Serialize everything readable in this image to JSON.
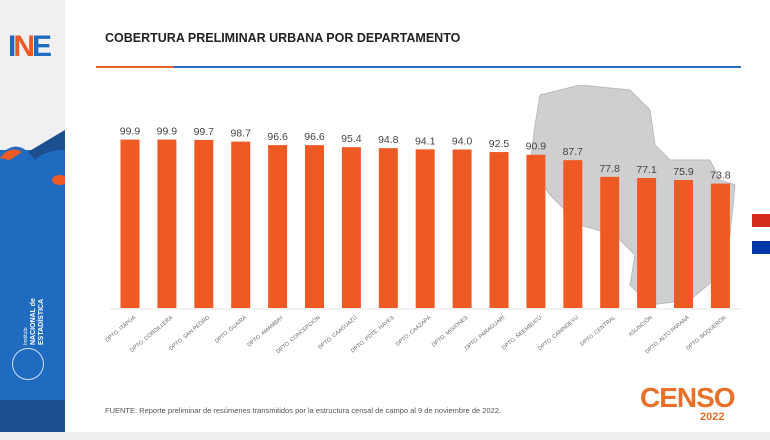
{
  "header": {
    "logo": "INE",
    "title": "COBERTURA PRELIMINAR URBANA POR DEPARTAMENTO"
  },
  "sidebar": {
    "institution_lines": [
      "Instituto",
      "NACIONAL de",
      "ESTADÍSTICA"
    ]
  },
  "footer": {
    "source": "FUENTE: Reporte preliminar de resúmenes transmitidos por la estructura censal de campo al 9 de noviembre de 2022.",
    "censo_logo": "CENSO",
    "censo_year": "2022"
  },
  "colors": {
    "bar": "#ef5a24",
    "brand_blue": "#1f6bbf",
    "brand_orange": "#e8702a"
  },
  "chart_data": {
    "type": "bar",
    "title": "COBERTURA PRELIMINAR URBANA POR DEPARTAMENTO",
    "xlabel": "",
    "ylabel": "",
    "ylim": [
      0,
      100
    ],
    "grid": false,
    "legend": "none",
    "categories": [
      "DPTO. ITAPÚA",
      "DPTO. CORDILLERA",
      "DPTO. SAN PEDRO",
      "DPTO. GUAIRÁ",
      "DPTO. AMAMBAY",
      "DPTO. CONCEPCIÓN",
      "DPTO. CAAGUAZÚ",
      "DPTO. PDTE. HAYES",
      "DPTO. CAAZAPÁ",
      "DPTO. MISIONES",
      "DPTO. PARAGUARÍ",
      "DPTO. ÑEEMBUCÚ",
      "DPTO. CANINDEYÚ",
      "DPTO. CENTRAL",
      "ASUNCIÓN",
      "DPTO. ALTO PARANÁ",
      "DPTO. BOQUERÓN"
    ],
    "values": [
      99.9,
      99.9,
      99.7,
      98.7,
      96.6,
      96.6,
      95.4,
      94.8,
      94.1,
      94.0,
      92.5,
      90.9,
      87.7,
      77.8,
      77.1,
      75.9,
      73.8
    ]
  }
}
